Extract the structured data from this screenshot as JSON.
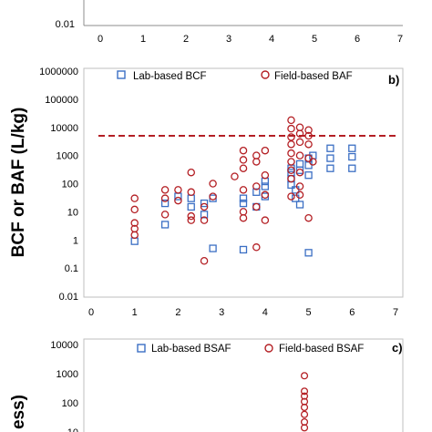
{
  "colors": {
    "lab": "#3b6fc4",
    "field": "#b41f24",
    "reference_line": "#b41f24",
    "axis": "#8c8c8c"
  },
  "chart_data": [
    {
      "panel": "a",
      "type": "scatter",
      "visible_portion": "bottom edge only",
      "x_ticks": [
        "0",
        "1",
        "2",
        "3",
        "4",
        "5",
        "6",
        "7"
      ],
      "y_ticks": [
        "0.01"
      ],
      "xlim": [
        0,
        7
      ],
      "series": []
    },
    {
      "panel": "b",
      "type": "scatter",
      "panel_label": "b)",
      "ylabel": "BCF or BAF (L/kg)",
      "y_scale": "log",
      "xlim": [
        0,
        7
      ],
      "ylim": [
        0.01,
        1000000
      ],
      "x_ticks": [
        "0",
        "1",
        "2",
        "3",
        "4",
        "5",
        "6",
        "7"
      ],
      "y_ticks": [
        "0.01",
        "0.1",
        "1",
        "10",
        "100",
        "1000",
        "10000",
        "100000",
        "1000000"
      ],
      "reference_line": {
        "y": 5000,
        "style": "dashed"
      },
      "legend_position": "top",
      "series": [
        {
          "name": "Lab-based BCF",
          "marker": "square",
          "points": [
            [
              1.0,
              0.9
            ],
            [
              1.7,
              3.5
            ],
            [
              1.7,
              20
            ],
            [
              2.0,
              35
            ],
            [
              2.3,
              15
            ],
            [
              2.3,
              30
            ],
            [
              2.6,
              8
            ],
            [
              2.6,
              20
            ],
            [
              2.8,
              0.5
            ],
            [
              2.8,
              30
            ],
            [
              3.5,
              0.45
            ],
            [
              3.5,
              20
            ],
            [
              3.5,
              30
            ],
            [
              3.8,
              15
            ],
            [
              3.8,
              50
            ],
            [
              4.0,
              80
            ],
            [
              4.0,
              120
            ],
            [
              4.0,
              35
            ],
            [
              4.6,
              90
            ],
            [
              4.6,
              150
            ],
            [
              4.6,
              250
            ],
            [
              4.6,
              350
            ],
            [
              4.7,
              30
            ],
            [
              4.7,
              60
            ],
            [
              4.8,
              18
            ],
            [
              4.8,
              300
            ],
            [
              4.8,
              500
            ],
            [
              5.0,
              0.35
            ],
            [
              5.0,
              200
            ],
            [
              5.0,
              450
            ],
            [
              5.0,
              800
            ],
            [
              5.1,
              1000
            ],
            [
              5.5,
              350
            ],
            [
              5.5,
              800
            ],
            [
              5.5,
              1800
            ],
            [
              6.0,
              350
            ],
            [
              6.0,
              900
            ],
            [
              6.0,
              1800
            ]
          ]
        },
        {
          "name": "Field-based BAF",
          "marker": "circle",
          "points": [
            [
              1.0,
              1.5
            ],
            [
              1.0,
              2.5
            ],
            [
              1.0,
              4
            ],
            [
              1.0,
              12
            ],
            [
              1.0,
              30
            ],
            [
              1.7,
              8
            ],
            [
              1.7,
              30
            ],
            [
              1.7,
              60
            ],
            [
              2.0,
              25
            ],
            [
              2.0,
              60
            ],
            [
              2.3,
              5
            ],
            [
              2.3,
              7
            ],
            [
              2.3,
              50
            ],
            [
              2.3,
              250
            ],
            [
              2.6,
              5
            ],
            [
              2.6,
              15
            ],
            [
              2.6,
              0.18
            ],
            [
              2.8,
              35
            ],
            [
              2.8,
              100
            ],
            [
              3.3,
              180
            ],
            [
              3.5,
              10
            ],
            [
              3.5,
              6
            ],
            [
              3.5,
              60
            ],
            [
              3.5,
              350
            ],
            [
              3.5,
              700
            ],
            [
              3.5,
              1500
            ],
            [
              3.8,
              0.55
            ],
            [
              3.8,
              15
            ],
            [
              3.8,
              80
            ],
            [
              3.8,
              600
            ],
            [
              3.8,
              1000
            ],
            [
              4.0,
              5
            ],
            [
              4.0,
              40
            ],
            [
              4.0,
              200
            ],
            [
              4.0,
              1500
            ],
            [
              4.6,
              35
            ],
            [
              4.6,
              150
            ],
            [
              4.6,
              300
            ],
            [
              4.6,
              600
            ],
            [
              4.6,
              1200
            ],
            [
              4.6,
              2500
            ],
            [
              4.6,
              4500
            ],
            [
              4.6,
              9000
            ],
            [
              4.6,
              18000
            ],
            [
              4.8,
              40
            ],
            [
              4.8,
              80
            ],
            [
              4.8,
              250
            ],
            [
              4.8,
              1000
            ],
            [
              4.8,
              3000
            ],
            [
              4.8,
              6000
            ],
            [
              4.8,
              10000
            ],
            [
              5.0,
              6
            ],
            [
              5.0,
              800
            ],
            [
              5.0,
              2500
            ],
            [
              5.0,
              5000
            ],
            [
              5.0,
              8000
            ],
            [
              5.1,
              600
            ]
          ]
        }
      ]
    },
    {
      "panel": "c",
      "type": "scatter",
      "panel_label": "c)",
      "ylabel": "ess)",
      "y_scale": "log",
      "y_ticks": [
        "10000",
        "1000",
        "100",
        "10"
      ],
      "legend_position": "top",
      "series": [
        {
          "name": "Lab-based BSAF",
          "marker": "square",
          "points": []
        },
        {
          "name": "Field-based BSAF",
          "marker": "circle",
          "points": [
            [
              4.8,
              850
            ],
            [
              4.8,
              250
            ],
            [
              4.8,
              170
            ],
            [
              4.8,
              110
            ],
            [
              4.8,
              70
            ],
            [
              4.8,
              40
            ],
            [
              4.8,
              22
            ],
            [
              4.8,
              14
            ],
            [
              4.8,
              10
            ]
          ]
        }
      ]
    }
  ]
}
